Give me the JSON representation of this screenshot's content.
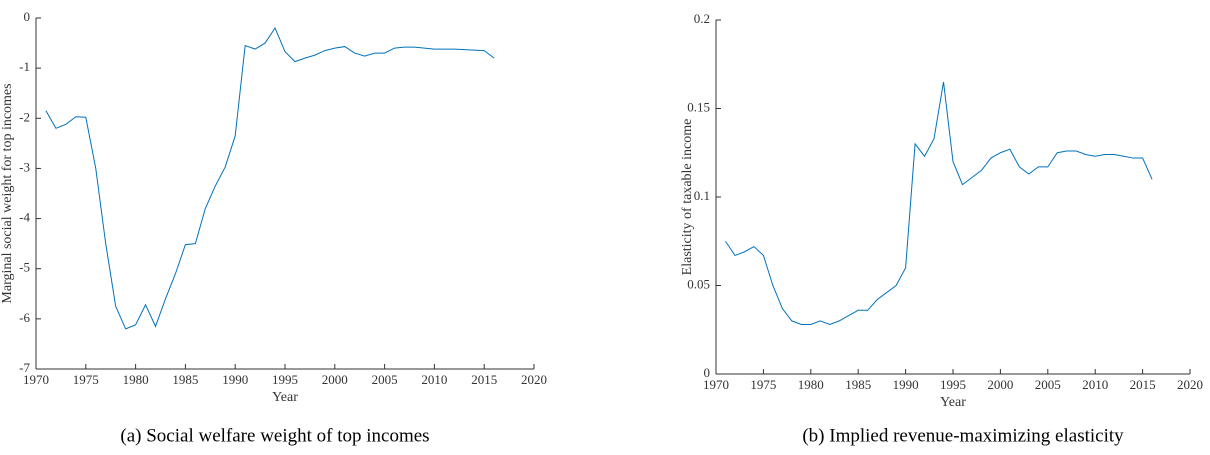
{
  "chart_data": [
    {
      "type": "line",
      "caption": "(a) Social welfare weight of top incomes",
      "xlabel": "Year",
      "ylabel": "Marginal social weight for top incomes",
      "x": [
        1971,
        1972,
        1973,
        1974,
        1975,
        1976,
        1977,
        1978,
        1979,
        1980,
        1981,
        1982,
        1983,
        1984,
        1985,
        1986,
        1987,
        1988,
        1989,
        1990,
        1991,
        1992,
        1993,
        1994,
        1995,
        1996,
        1997,
        1998,
        1999,
        2000,
        2001,
        2002,
        2003,
        2004,
        2005,
        2006,
        2007,
        2008,
        2009,
        2010,
        2011,
        2012,
        2013,
        2014,
        2015,
        2016
      ],
      "series": [
        {
          "color": "#0072bd",
          "values": [
            -1.85,
            -2.2,
            -2.12,
            -1.97,
            -1.98,
            -3.0,
            -4.5,
            -5.75,
            -6.2,
            -6.12,
            -5.72,
            -6.15,
            -5.6,
            -5.1,
            -4.52,
            -4.5,
            -3.8,
            -3.35,
            -2.97,
            -2.35,
            -0.55,
            -0.62,
            -0.5,
            -0.2,
            -0.67,
            -0.87,
            -0.8,
            -0.74,
            -0.65,
            -0.6,
            -0.57,
            -0.7,
            -0.76,
            -0.7,
            -0.7,
            -0.6,
            -0.58,
            -0.58,
            -0.6,
            -0.62,
            -0.62,
            -0.62,
            -0.63,
            -0.64,
            -0.65,
            -0.8
          ]
        }
      ],
      "xlim": [
        1970,
        2020
      ],
      "xticks": [
        1970,
        1975,
        1980,
        1985,
        1990,
        1995,
        2000,
        2005,
        2010,
        2015,
        2020
      ],
      "ylim": [
        -7,
        0
      ],
      "yticks": [
        -7,
        -6,
        -5,
        -4,
        -3,
        -2,
        -1,
        0
      ]
    },
    {
      "type": "line",
      "caption": "(b) Implied revenue-maximizing elasticity",
      "xlabel": "Year",
      "ylabel": "Elasticity of taxable income",
      "x": [
        1971,
        1972,
        1973,
        1974,
        1975,
        1976,
        1977,
        1978,
        1979,
        1980,
        1981,
        1982,
        1983,
        1984,
        1985,
        1986,
        1987,
        1988,
        1989,
        1990,
        1991,
        1992,
        1993,
        1994,
        1995,
        1996,
        1997,
        1998,
        1999,
        2000,
        2001,
        2002,
        2003,
        2004,
        2005,
        2006,
        2007,
        2008,
        2009,
        2010,
        2011,
        2012,
        2013,
        2014,
        2015,
        2016
      ],
      "series": [
        {
          "color": "#0072bd",
          "values": [
            0.075,
            0.067,
            0.069,
            0.072,
            0.067,
            0.05,
            0.037,
            0.03,
            0.028,
            0.028,
            0.03,
            0.028,
            0.03,
            0.033,
            0.036,
            0.036,
            0.042,
            0.046,
            0.05,
            0.06,
            0.13,
            0.123,
            0.133,
            0.165,
            0.12,
            0.107,
            0.111,
            0.115,
            0.122,
            0.125,
            0.127,
            0.117,
            0.113,
            0.117,
            0.117,
            0.125,
            0.126,
            0.126,
            0.124,
            0.123,
            0.124,
            0.124,
            0.123,
            0.122,
            0.122,
            0.11
          ]
        }
      ],
      "xlim": [
        1970,
        2020
      ],
      "xticks": [
        1970,
        1975,
        1980,
        1985,
        1990,
        1995,
        2000,
        2005,
        2010,
        2015,
        2020
      ],
      "ylim": [
        0,
        0.2
      ],
      "yticks": [
        0,
        0.05,
        0.1,
        0.15,
        0.2
      ]
    }
  ]
}
